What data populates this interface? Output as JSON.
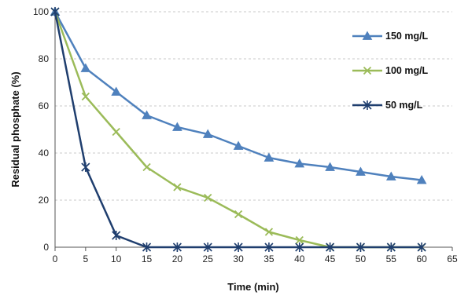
{
  "chart_data": {
    "type": "line",
    "title": "",
    "xlabel": "Time (min)",
    "ylabel": "Residual phosphate (%)",
    "xlim": [
      0,
      65
    ],
    "ylim": [
      0,
      100
    ],
    "xticks": [
      "0",
      "5",
      "10",
      "15",
      "20",
      "25",
      "30",
      "35",
      "40",
      "45",
      "50",
      "55",
      "60",
      "65"
    ],
    "yticks": [
      "0",
      "20",
      "40",
      "60",
      "80",
      "100"
    ],
    "grid": "horizontal-dashed",
    "legend_position": "right",
    "x": [
      0,
      5,
      10,
      15,
      20,
      25,
      30,
      35,
      40,
      45,
      50,
      55,
      60
    ],
    "series": [
      {
        "name": "150 mg/L",
        "color": "#4f81bd",
        "marker": "triangle",
        "values": [
          100,
          76,
          66,
          56,
          51,
          48,
          43,
          38,
          35.5,
          34,
          32,
          30,
          28.5
        ]
      },
      {
        "name": "100 mg/L",
        "color": "#9bbb59",
        "marker": "x",
        "values": [
          100,
          64,
          49,
          34,
          25.5,
          21,
          14,
          6.5,
          3,
          0,
          0,
          0,
          0
        ]
      },
      {
        "name": "50 mg/L",
        "color": "#1f3e6e",
        "marker": "asterisk",
        "values": [
          100,
          34,
          5,
          0,
          0,
          0,
          0,
          0,
          0,
          0,
          0,
          0,
          0
        ]
      }
    ]
  }
}
